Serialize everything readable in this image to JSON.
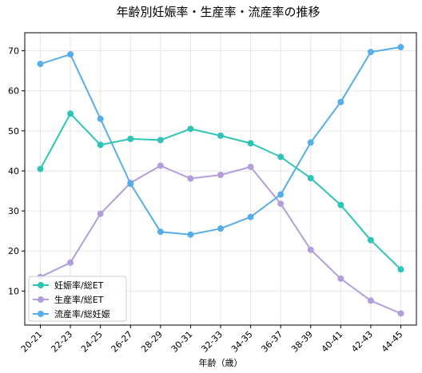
{
  "chart_data": {
    "type": "line",
    "title": "年齢別妊娠率・生産率・流産率の推移",
    "xlabel": "年齢（歳）",
    "ylabel": "",
    "categories": [
      "20-21",
      "22-23",
      "24-25",
      "26-27",
      "28-29",
      "30-31",
      "32-33",
      "34-35",
      "36-37",
      "38-39",
      "40-41",
      "42-43",
      "44-45"
    ],
    "ylim": [
      1.5,
      74.5
    ],
    "yticks": [
      10,
      20,
      30,
      40,
      50,
      60,
      70
    ],
    "grid": true,
    "legend_position": "lower-left",
    "series": [
      {
        "name": "妊娠率/総ET",
        "color": "#2ec4b6",
        "values": [
          40.5,
          54.3,
          46.5,
          48.0,
          47.7,
          50.5,
          48.8,
          46.9,
          43.5,
          38.2,
          31.5,
          22.7,
          15.4
        ]
      },
      {
        "name": "生産率/総ET",
        "color": "#b39ddb",
        "values": [
          13.5,
          17.1,
          29.3,
          37.0,
          41.3,
          38.1,
          39.0,
          41.0,
          31.8,
          20.3,
          13.1,
          7.6,
          4.4
        ]
      },
      {
        "name": "流産率/総妊娠",
        "color": "#56aee8",
        "values": [
          66.7,
          69.1,
          53.0,
          36.8,
          24.8,
          24.1,
          25.6,
          28.5,
          34.1,
          47.1,
          57.2,
          69.7,
          70.9
        ]
      }
    ]
  }
}
